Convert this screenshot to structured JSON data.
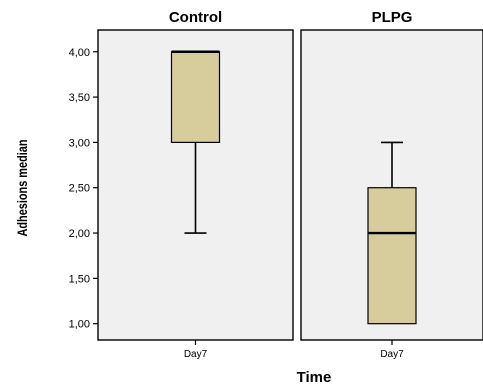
{
  "chart_data": {
    "type": "boxplot",
    "xlabel": "Time",
    "ylabel": "Adhesions median",
    "ylim": [
      0.82,
      4.24
    ],
    "yticks": [
      1.0,
      1.5,
      2.0,
      2.5,
      3.0,
      3.5,
      4.0
    ],
    "ytick_labels": [
      "1,00",
      "1,50",
      "2,00",
      "2,50",
      "3,00",
      "3,50",
      "4,00"
    ],
    "grid": false,
    "box_color": "#d6cc9c",
    "panel_color": "#f0f0f0",
    "panels": [
      {
        "title": "Control",
        "category": "Day7",
        "min": 2.0,
        "q1": 3.0,
        "median": 4.0,
        "q3": 4.0,
        "max": 4.0
      },
      {
        "title": "PLPG",
        "category": "Day7",
        "min": 1.0,
        "q1": 1.0,
        "median": 2.0,
        "q3": 2.5,
        "max": 3.0
      }
    ]
  }
}
